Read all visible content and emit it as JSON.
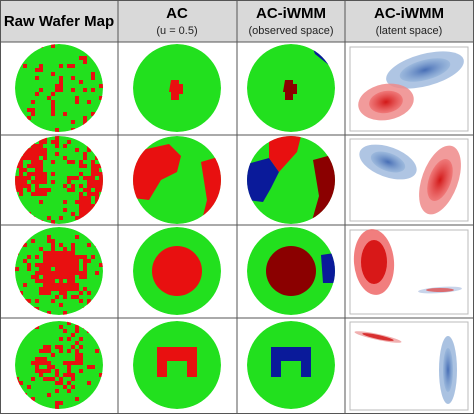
{
  "table": {
    "header": [
      {
        "title": "Raw Wafer Map"
      },
      {
        "title": "AC",
        "subtitle": "(u = 0.5)"
      },
      {
        "title": "AC-iWMM",
        "subtitle": "(observed space)"
      },
      {
        "title": "AC-iWMM",
        "subtitle": "(latent space)"
      }
    ]
  }
}
